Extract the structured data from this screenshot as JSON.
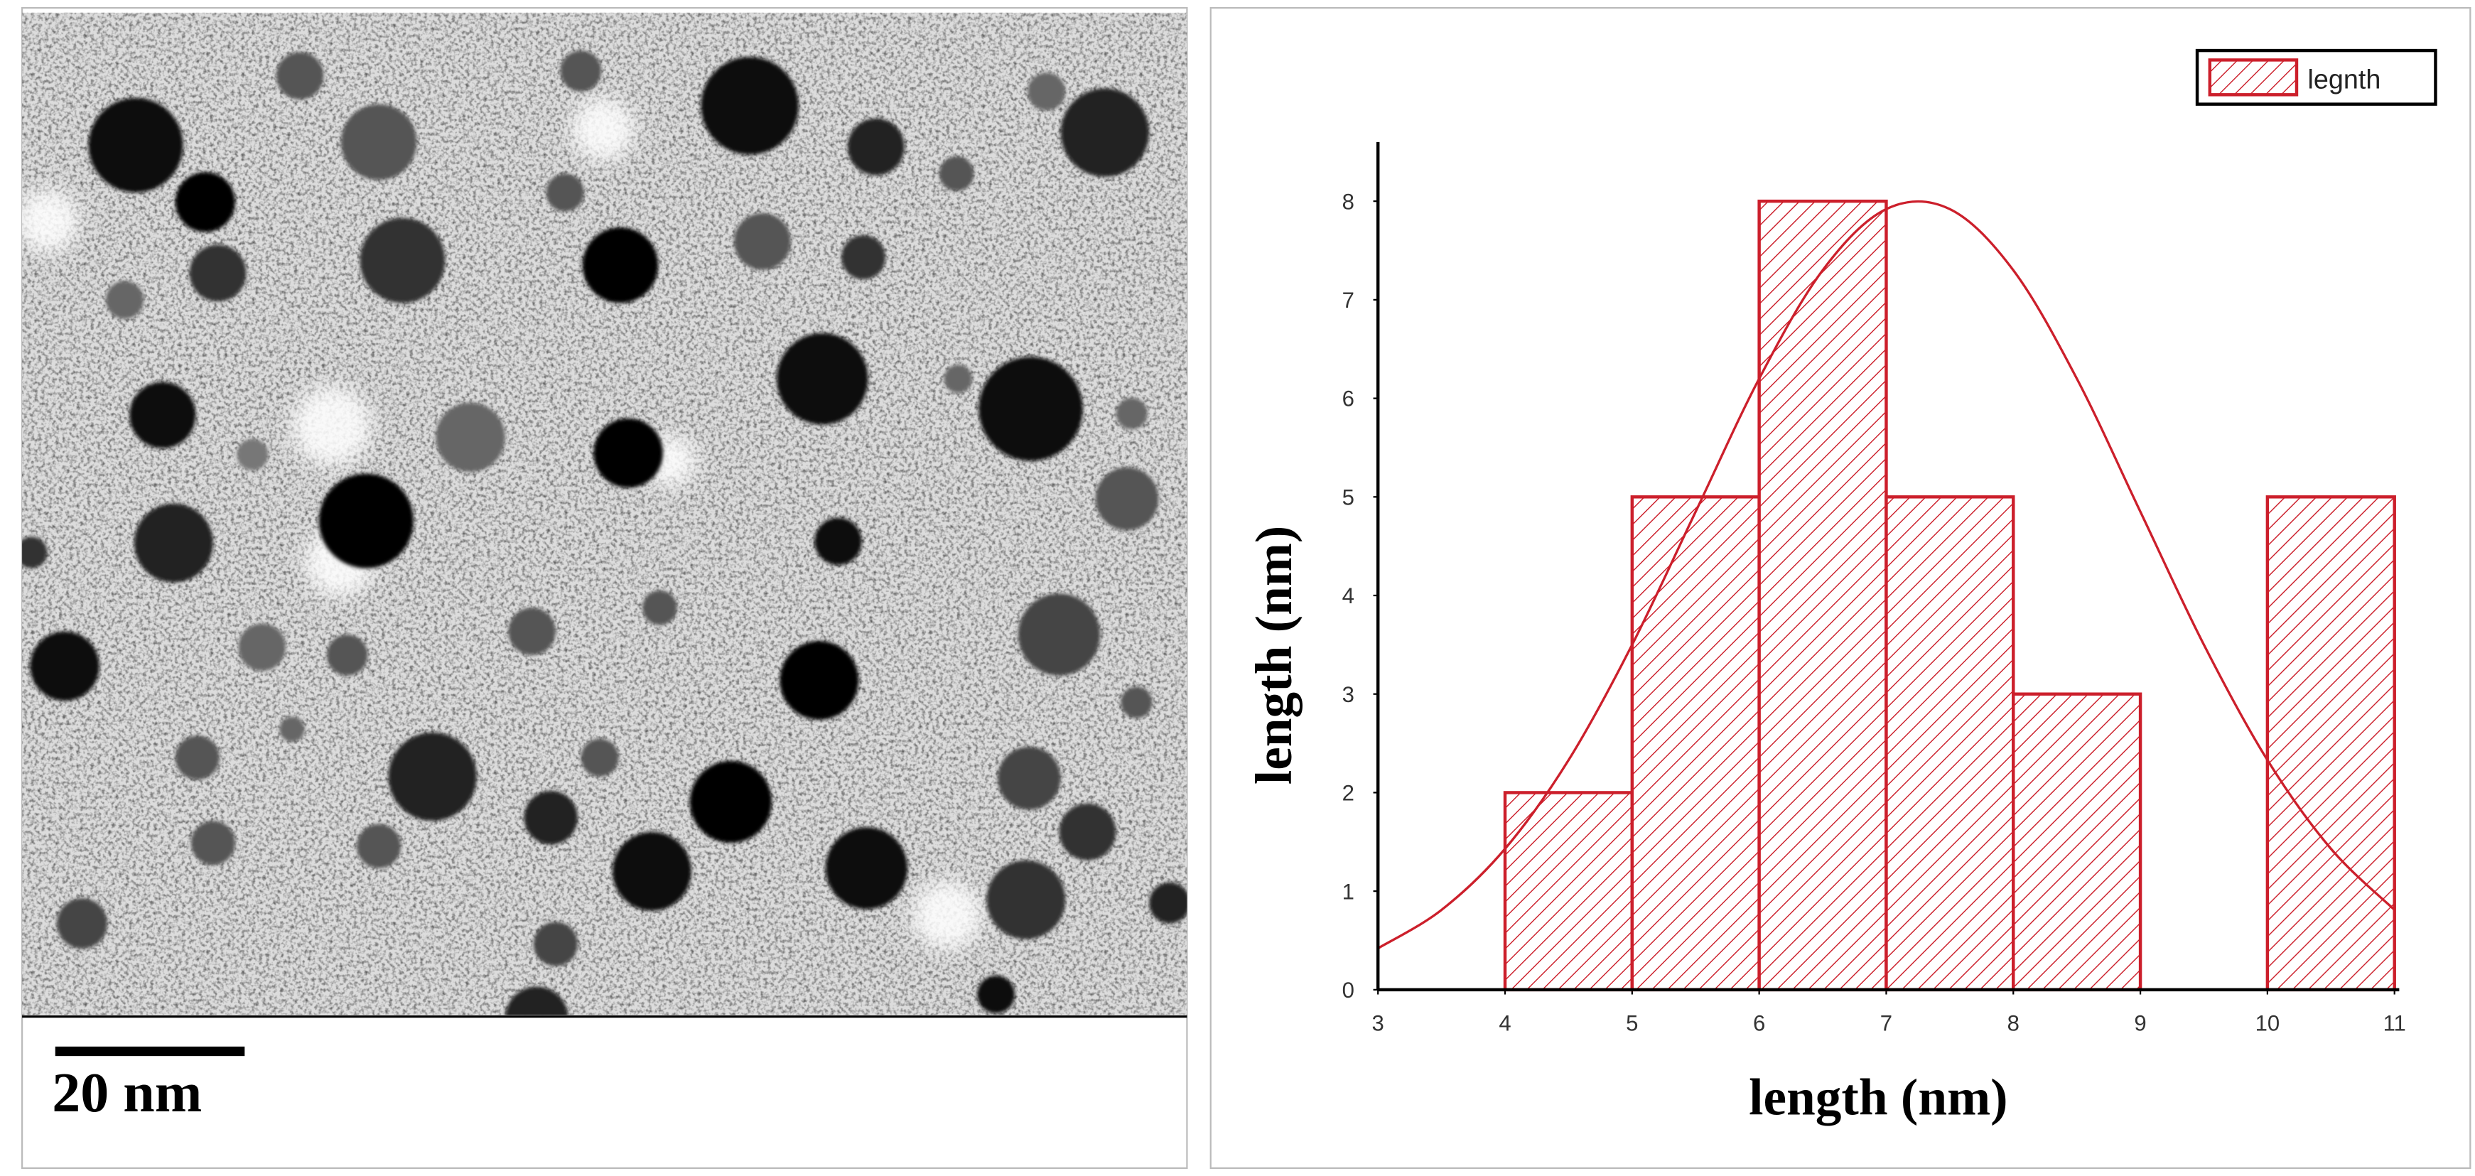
{
  "scale_bar": {
    "label": "20 nm"
  },
  "chart_data": {
    "type": "histogram",
    "xlabel": "length (nm)",
    "ylabel": "length (nm)",
    "series_name": "legnth",
    "legend_loc": "upper right",
    "color": "#cc1f2b",
    "bins": [
      4,
      5,
      6,
      7,
      8,
      9,
      10,
      11
    ],
    "values": [
      2,
      5,
      8,
      5,
      3,
      0,
      5
    ],
    "fit": {
      "x": [
        3,
        3.5,
        4,
        4.5,
        5,
        5.5,
        6,
        6.5,
        7,
        7.5,
        8,
        8.5,
        9,
        9.5,
        10,
        10.5,
        11
      ],
      "values": [
        0.42,
        0.81,
        1.43,
        2.33,
        3.5,
        4.85,
        6.2,
        7.3,
        7.92,
        7.92,
        7.3,
        6.2,
        4.85,
        3.5,
        2.33,
        1.43,
        0.81
      ]
    },
    "xlim": [
      3,
      11
    ],
    "ylim": [
      0,
      8.6
    ],
    "xticks": [
      3,
      4,
      5,
      6,
      7,
      8,
      9,
      10,
      11
    ],
    "yticks": [
      0,
      1,
      2,
      3,
      4,
      5,
      6,
      7,
      8
    ]
  }
}
